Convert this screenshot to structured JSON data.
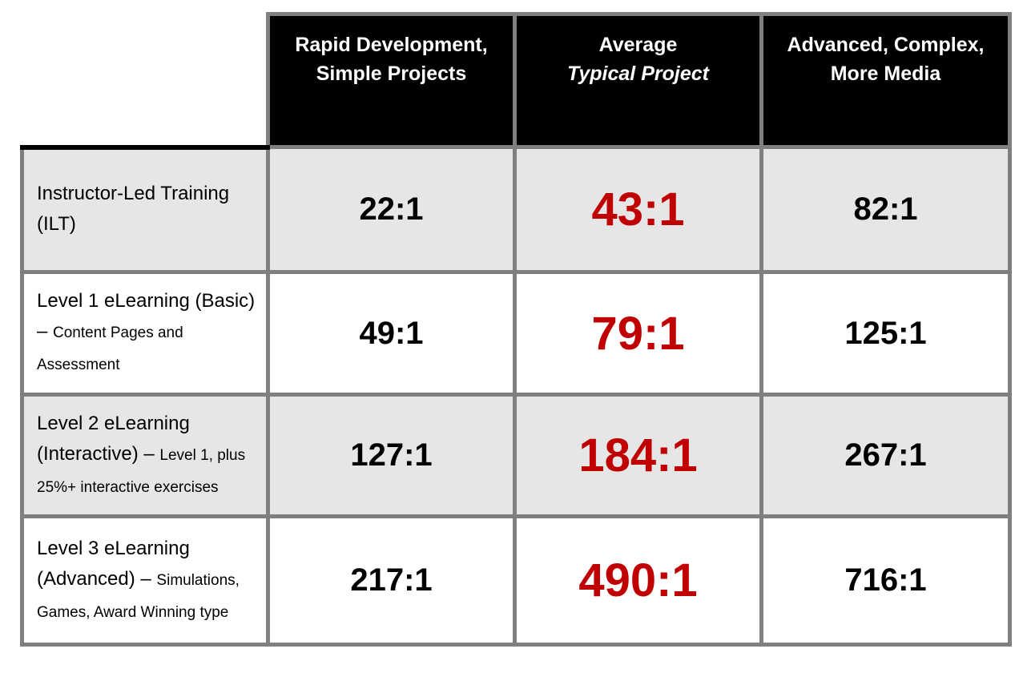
{
  "header": {
    "cells": [
      {
        "line1": "Rapid Development,",
        "line2": "Simple Projects"
      },
      {
        "line1": "Average",
        "line2": "Typical Project"
      },
      {
        "line1": "Advanced, Complex,",
        "line2": "More Media"
      }
    ]
  },
  "rows": [
    {
      "title_main": "Instructor-Led Training (ILT)",
      "title_detail": "",
      "values": [
        "22:1",
        "43:1",
        "82:1"
      ]
    },
    {
      "title_main": "Level 1 eLearning (Basic) – ",
      "title_detail": "Content Pages and Assessment",
      "values": [
        "49:1",
        "79:1",
        "125:1"
      ]
    },
    {
      "title_main": "Level 2 eLearning (Interactive) – ",
      "title_detail": "Level 1, plus 25%+ interactive exercises",
      "values": [
        "127:1",
        "184:1",
        "267:1"
      ]
    },
    {
      "title_main": "Level 3 eLearning (Advanced) – ",
      "title_detail": "Simulations, Games, Award Winning type",
      "values": [
        "217:1",
        "490:1",
        "716:1"
      ]
    }
  ],
  "colors": {
    "accent_red": "#C00000",
    "row_alt_bg": "#E6E6E6",
    "header_bg": "#000000",
    "border_gray": "#7F7F7F"
  }
}
